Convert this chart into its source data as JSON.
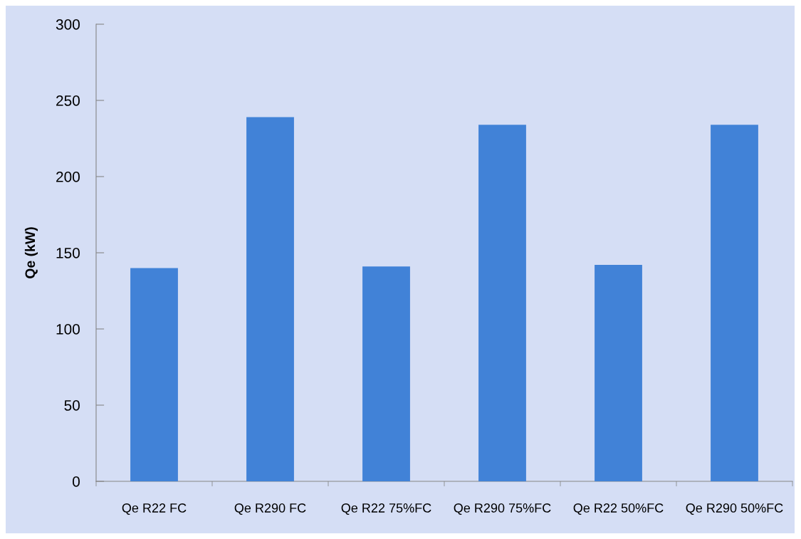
{
  "chart_data": {
    "type": "bar",
    "ylabel": "Qe (kW)",
    "categories": [
      "Qe R22 FC",
      "Qe R290 FC",
      "Qe R22 75%FC",
      "Qe R290 75%FC",
      "Qe R22 50%FC",
      "Qe R290 50%FC"
    ],
    "values": [
      140,
      239,
      141,
      234,
      142,
      234
    ],
    "color": "#4182d7",
    "ylim": [
      0,
      300
    ],
    "yticks": [
      0,
      50,
      100,
      150,
      200,
      250,
      300
    ]
  }
}
